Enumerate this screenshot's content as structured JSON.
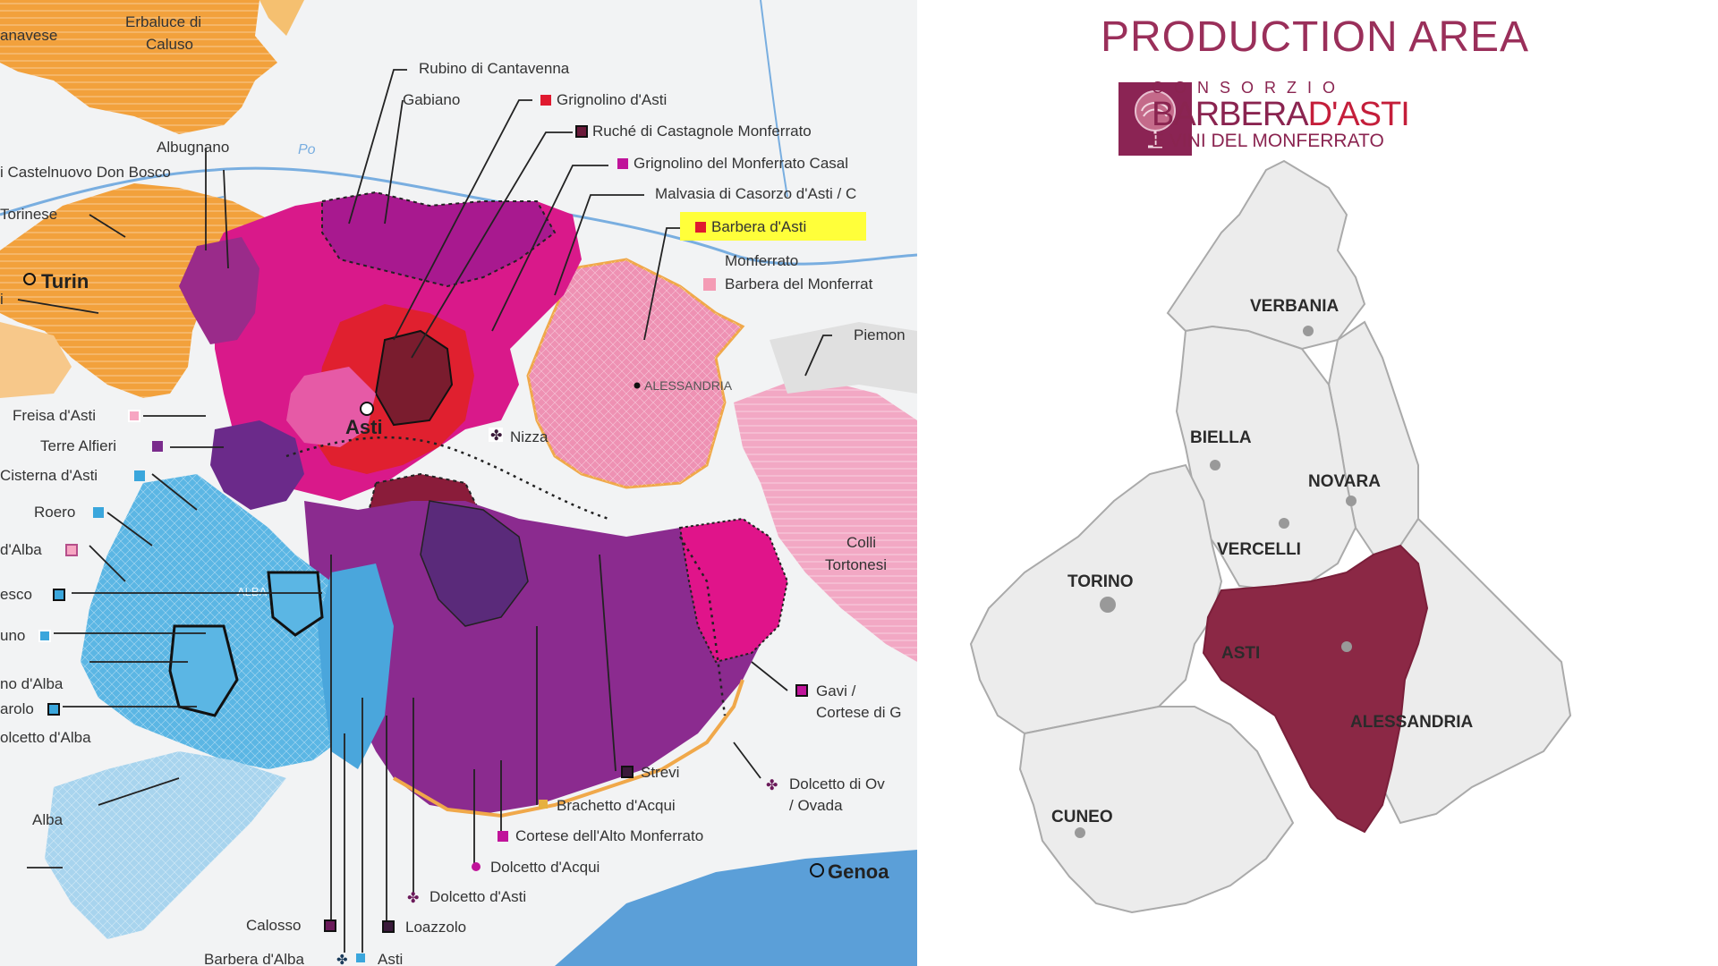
{
  "left_map": {
    "city_labels": {
      "turin": "Turin",
      "asti": "Asti",
      "genoa": "Genoa",
      "alessandria": "ALESSANDRIA",
      "nizza": "Nizza",
      "alba_city": "ALBA",
      "colli": "Colli",
      "tortonesi": "Tortonesi",
      "po": "Po"
    },
    "top_left_labels": {
      "erbaluce1": "Erbaluce di",
      "erbaluce2": "Caluso",
      "canavese": "anavese"
    },
    "labels": [
      {
        "key": "rubino",
        "text": "Rubino di Cantavenna",
        "swatch": ""
      },
      {
        "key": "gabiano",
        "text": "Gabiano",
        "swatch": ""
      },
      {
        "key": "grignolino_asti",
        "text": "Grignolino d'Asti",
        "swatch": "#e0192f"
      },
      {
        "key": "ruche",
        "text": "Ruché di Castagnole Monferrato",
        "swatch": "#6b1a3a"
      },
      {
        "key": "grignolino_monf",
        "text": "Grignolino del Monferrato Casal",
        "swatch": "#c0149a"
      },
      {
        "key": "malvasia",
        "text": "Malvasia di Casorzo d'Asti / C",
        "swatch": ""
      },
      {
        "key": "barbera_asti",
        "text": "Barbera d'Asti",
        "swatch": "#e0192f"
      },
      {
        "key": "monferrato",
        "text": "Monferrato",
        "swatch": ""
      },
      {
        "key": "barbera_monf",
        "text": "Barbera del Monferrat",
        "swatch": "#f49bb4"
      },
      {
        "key": "piemonte",
        "text": "Piemon",
        "swatch": ""
      },
      {
        "key": "albugnano",
        "text": "Albugnano",
        "swatch": ""
      },
      {
        "key": "castelnuovo",
        "text": "i Castelnuovo Don Bosco",
        "swatch": ""
      },
      {
        "key": "torinese",
        "text": "Torinese",
        "swatch": ""
      },
      {
        "key": "i_label",
        "text": "i",
        "swatch": ""
      },
      {
        "key": "freisa",
        "text": "Freisa d'Asti",
        "swatch": "#f7a6c2"
      },
      {
        "key": "terre_alfieri",
        "text": "Terre Alfieri",
        "swatch": "#7a2b8c"
      },
      {
        "key": "cisterna",
        "text": "Cisterna d'Asti",
        "swatch": "#3aa6dc"
      },
      {
        "key": "roero",
        "text": "Roero",
        "swatch": "#3aa6dc"
      },
      {
        "key": "d_alba",
        "text": "d'Alba",
        "swatch": "#f7a6c2"
      },
      {
        "key": "esco",
        "text": "esco",
        "swatch": "#1a3a5a"
      },
      {
        "key": "uno",
        "text": "uno",
        "swatch": "#3aa6dc"
      },
      {
        "key": "no_dalba",
        "text": "no d'Alba",
        "swatch": ""
      },
      {
        "key": "arolo",
        "text": "arolo",
        "swatch": "#1a3a5a"
      },
      {
        "key": "dolcetto_alba",
        "text": "olcetto d'Alba",
        "swatch": ""
      },
      {
        "key": "alba",
        "text": "Alba",
        "swatch": ""
      },
      {
        "key": "gavi1",
        "text": "Gavi /",
        "swatch": "#c0149a"
      },
      {
        "key": "gavi2",
        "text": "Cortese di G",
        "swatch": ""
      },
      {
        "key": "dolcetto_ova1",
        "text": "Dolcetto di Ov",
        "swatch": "#6b1a5a"
      },
      {
        "key": "dolcetto_ova2",
        "text": "/ Ovada",
        "swatch": ""
      },
      {
        "key": "strevi",
        "text": "Strevi",
        "swatch": "#3a1a3a"
      },
      {
        "key": "brachetto",
        "text": "Brachetto d'Acqui",
        "swatch": "#e6b040"
      },
      {
        "key": "cortese_alto",
        "text": "Cortese dell'Alto Monferrato",
        "swatch": "#c0149a"
      },
      {
        "key": "dolcetto_acqui",
        "text": "Dolcetto d'Acqui",
        "swatch": "#c0149a"
      },
      {
        "key": "dolcetto_asti",
        "text": "Dolcetto d'Asti",
        "swatch": "#6b1a5a"
      },
      {
        "key": "calosso",
        "text": "Calosso",
        "swatch": "#6b1a5a"
      },
      {
        "key": "loazzolo",
        "text": "Loazzolo",
        "swatch": "#3a1a3a"
      },
      {
        "key": "barbera_alba",
        "text": "Barbera d'Alba",
        "swatch": "#1a3a5a"
      },
      {
        "key": "asti_wine",
        "text": "Asti",
        "swatch": "#3aa6dc"
      }
    ],
    "highlight_color": "#ffff3a"
  },
  "right_panel": {
    "heading": "PRODUCTION AREA",
    "consorzio_line1": "CONSORZIO",
    "consorzio_line2a": "BARBERA",
    "consorzio_line2b": "D'ASTI",
    "consorzio_line3": "E VINI DEL MONFERRATO",
    "provinces": {
      "verbania": "VERBANIA",
      "biella": "BIELLA",
      "novara": "NOVARA",
      "vercelli": "VERCELLI",
      "torino": "TORINO",
      "asti": "ASTI",
      "alessandria": "ALESSANDRIA",
      "cuneo": "CUNEO"
    },
    "colors": {
      "asti_fill": "#8b2845",
      "region_fill": "#ececec",
      "border": "#aaaaaa",
      "brand": "#8b2454"
    }
  }
}
